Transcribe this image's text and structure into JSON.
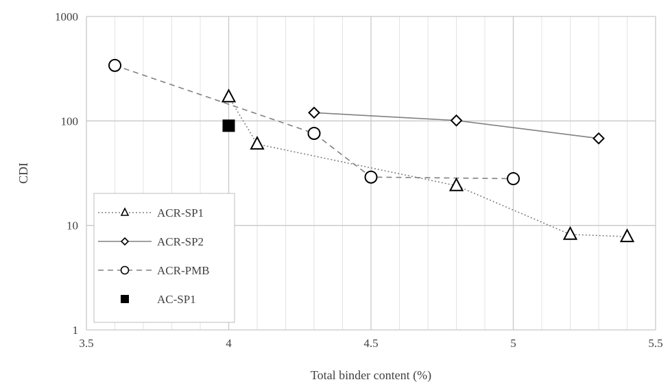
{
  "chart_data": {
    "type": "scatter",
    "xlabel": "Total binder content (%)",
    "ylabel": "CDI",
    "xlim": [
      3.5,
      5.5
    ],
    "ylim": [
      1,
      1000
    ],
    "y_scale": "log",
    "x_major_ticks": [
      3.5,
      4,
      4.5,
      5,
      5.5
    ],
    "x_tick_labels": [
      "3.5",
      "4",
      "4.5",
      "5",
      "5.5"
    ],
    "x_minor_step": 0.1,
    "y_major_ticks": [
      1,
      10,
      100,
      1000
    ],
    "y_tick_labels": [
      "1",
      "10",
      "100",
      "1000"
    ],
    "grid": true,
    "legend_position": "bottom-left",
    "series": [
      {
        "name": "ACR-SP1",
        "marker": "triangle",
        "line": "dotted",
        "color": "#808080",
        "x": [
          4.0,
          4.1,
          4.8,
          5.2,
          5.4
        ],
        "y": [
          170,
          60,
          24,
          8.2,
          7.8
        ]
      },
      {
        "name": "ACR-SP2",
        "marker": "diamond",
        "line": "solid",
        "color": "#808080",
        "x": [
          4.3,
          4.8,
          5.3
        ],
        "y": [
          120,
          101,
          68
        ]
      },
      {
        "name": "ACR-PMB",
        "marker": "circle",
        "line": "dashed",
        "color": "#808080",
        "x": [
          3.6,
          4.3,
          4.5,
          5.0
        ],
        "y": [
          340,
          76,
          29,
          28
        ]
      },
      {
        "name": "AC-SP1",
        "marker": "square",
        "line": "none",
        "color": "#000000",
        "x": [
          4.0
        ],
        "y": [
          90
        ]
      }
    ]
  }
}
